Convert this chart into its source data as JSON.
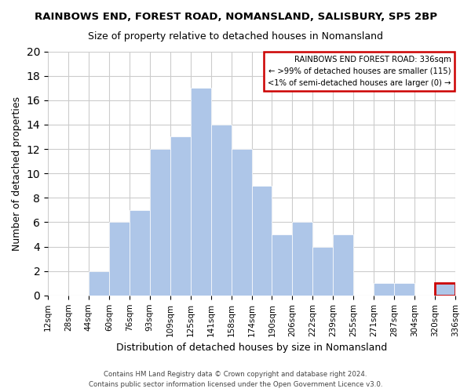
{
  "title": "RAINBOWS END, FOREST ROAD, NOMANSLAND, SALISBURY, SP5 2BP",
  "subtitle": "Size of property relative to detached houses in Nomansland",
  "xlabel": "Distribution of detached houses by size in Nomansland",
  "ylabel": "Number of detached properties",
  "bar_color": "#aec6e8",
  "grid_color": "#cccccc",
  "bin_edges_labels": [
    "12sqm",
    "28sqm",
    "44sqm",
    "60sqm",
    "76sqm",
    "93sqm",
    "109sqm",
    "125sqm",
    "141sqm",
    "158sqm",
    "174sqm",
    "190sqm",
    "206sqm",
    "222sqm",
    "239sqm",
    "255sqm",
    "271sqm",
    "287sqm",
    "304sqm",
    "320sqm",
    "336sqm"
  ],
  "bar_heights": [
    0,
    0,
    2,
    6,
    7,
    12,
    13,
    17,
    14,
    12,
    9,
    5,
    6,
    4,
    5,
    0,
    1,
    1,
    0,
    1
  ],
  "ylim": [
    0,
    20
  ],
  "yticks": [
    0,
    2,
    4,
    6,
    8,
    10,
    12,
    14,
    16,
    18,
    20
  ],
  "legend_title": "RAINBOWS END FOREST ROAD: 336sqm",
  "legend_line1": "← >99% of detached houses are smaller (115)",
  "legend_line2": "<1% of semi-detached houses are larger (0) →",
  "legend_box_color": "#ffffff",
  "legend_box_edge_color": "#cc0000",
  "footer_line1": "Contains HM Land Registry data © Crown copyright and database right 2024.",
  "footer_line2": "Contains public sector information licensed under the Open Government Licence v3.0.",
  "highlight_bar_index": 19,
  "highlight_bar_edge_color": "#cc0000",
  "highlight_bar_edge_width": 2
}
